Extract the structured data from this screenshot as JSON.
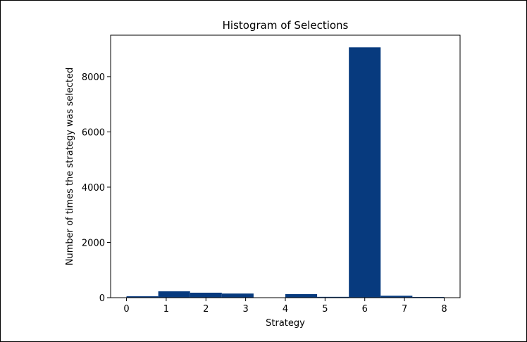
{
  "chart_data": {
    "type": "bar",
    "title": "Histogram of Selections",
    "xlabel": "Strategy",
    "ylabel": "Number of times the strategy was selected",
    "xlim": [
      -0.4,
      8.4
    ],
    "ylim": [
      0,
      9500
    ],
    "xticks": [
      0,
      1,
      2,
      3,
      4,
      5,
      6,
      7,
      8
    ],
    "yticks": [
      0,
      2000,
      4000,
      6000,
      8000
    ],
    "bin_width": 0.8,
    "bins": [
      {
        "start": 0.0,
        "value": 50
      },
      {
        "start": 0.8,
        "value": 230
      },
      {
        "start": 1.6,
        "value": 180
      },
      {
        "start": 2.4,
        "value": 150
      },
      {
        "start": 3.2,
        "value": 0
      },
      {
        "start": 4.0,
        "value": 130
      },
      {
        "start": 4.8,
        "value": 30
      },
      {
        "start": 5.6,
        "value": 9060
      },
      {
        "start": 6.4,
        "value": 70
      },
      {
        "start": 7.2,
        "value": 25
      }
    ],
    "bar_color": "#073a7e",
    "grid": false,
    "legend": "none"
  }
}
